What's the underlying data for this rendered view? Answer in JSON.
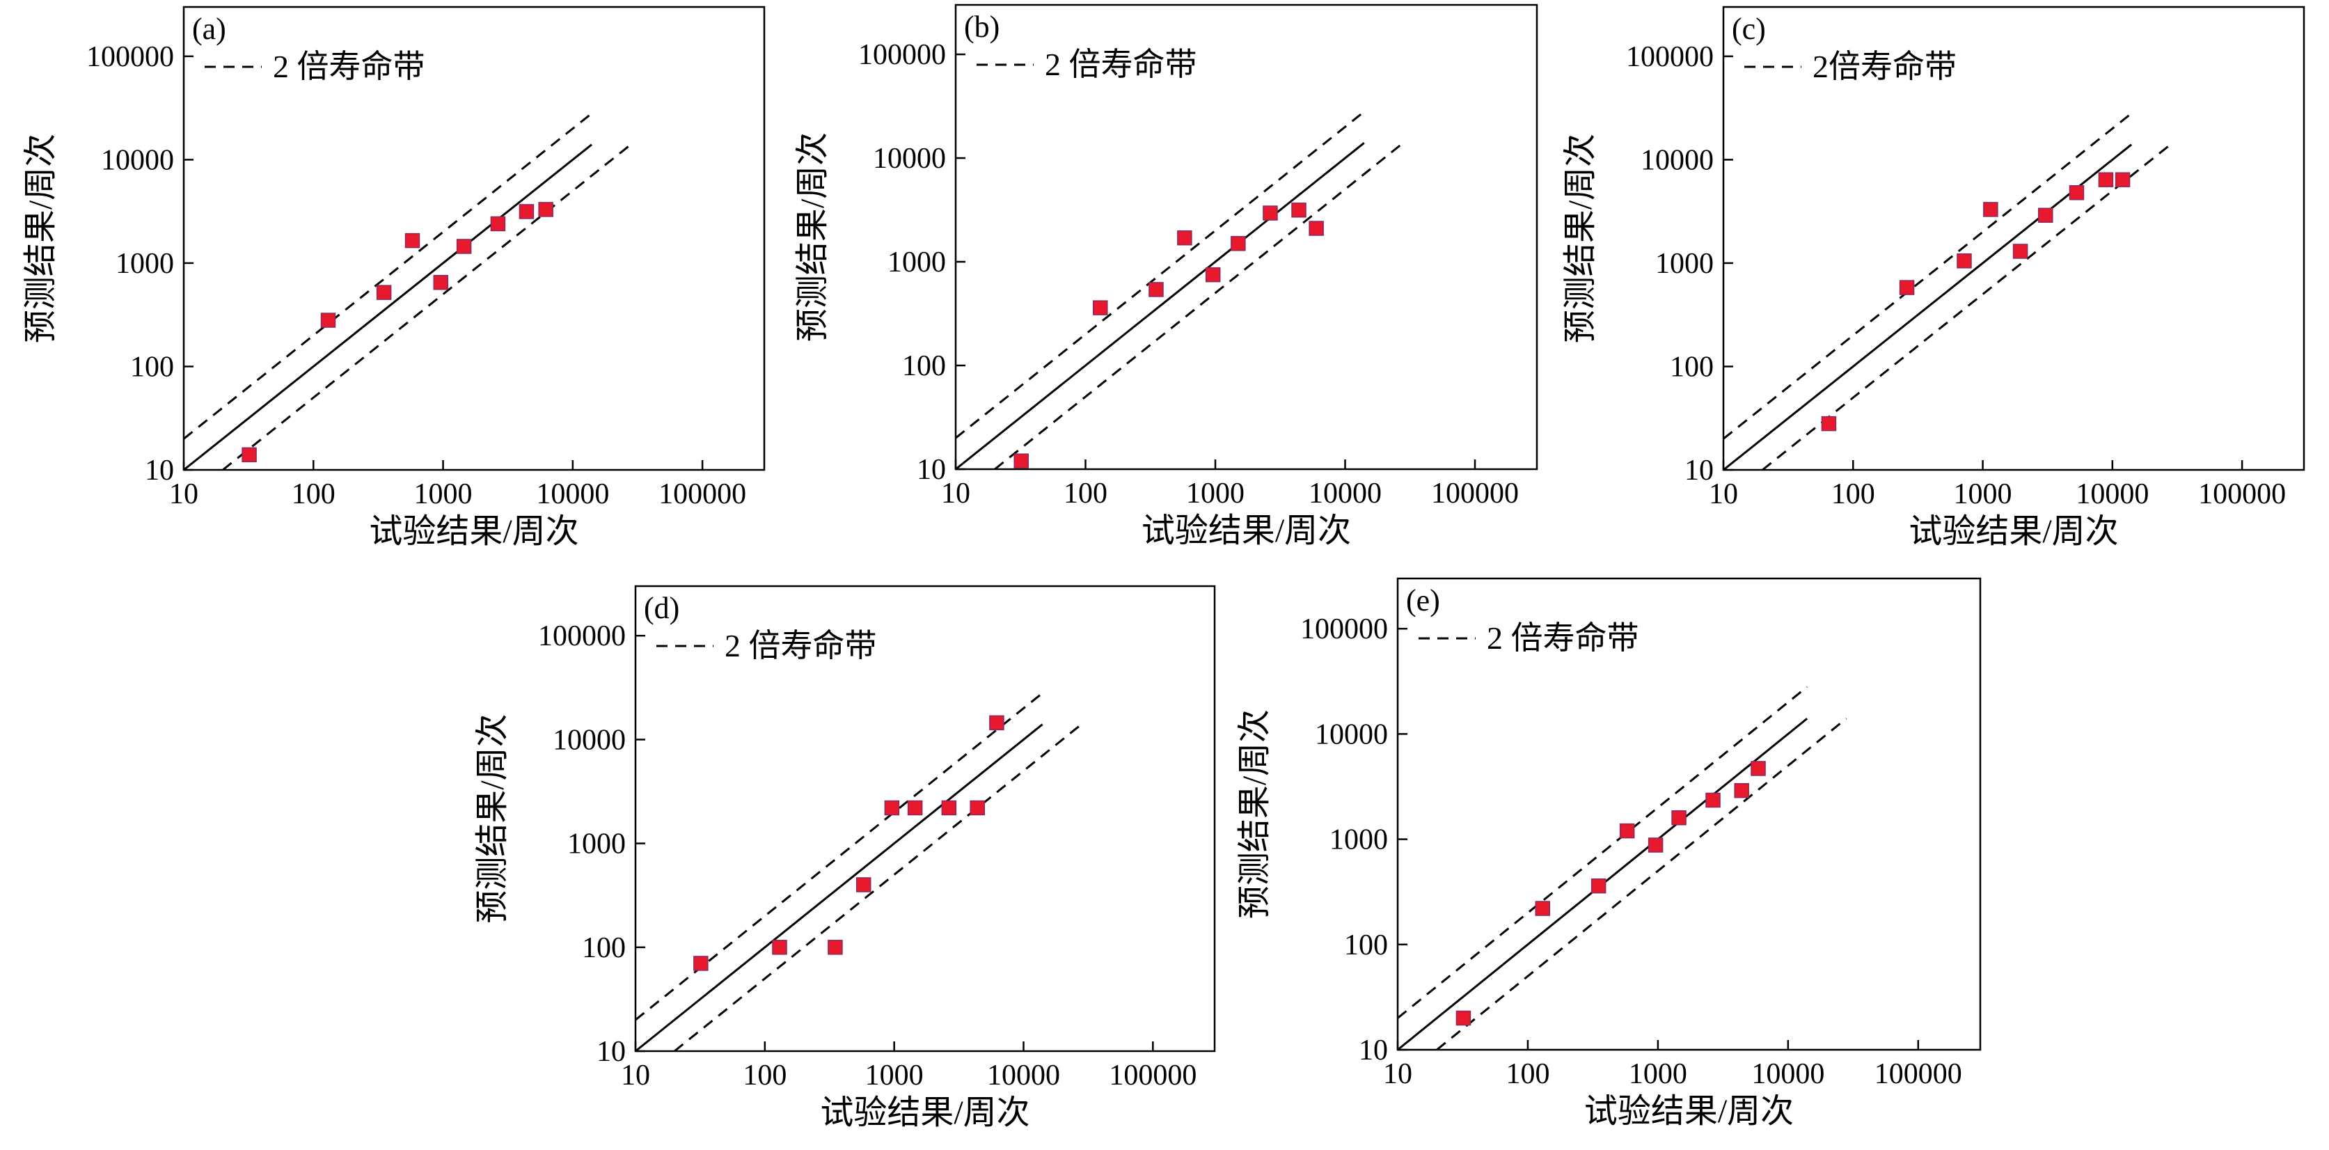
{
  "chart_data": [
    {
      "type": "scatter",
      "panel_label": "(a)",
      "xlabel": "试验结果/周次",
      "ylabel": "预测结果/周次",
      "xscale": "log",
      "yscale": "log",
      "xlim": [
        10,
        300000
      ],
      "ylim": [
        10,
        300000
      ],
      "xticks": [
        "10",
        "100",
        "1000",
        "10000",
        "100000"
      ],
      "yticks": [
        "10",
        "100",
        "1000",
        "10000",
        "100000"
      ],
      "legend": {
        "label": "2 倍寿命带",
        "position": "top-left"
      },
      "lines": {
        "center_ratio": 1,
        "band_ratio": 2,
        "x_end": 14000
      },
      "marker_color": "#e8192c",
      "points": [
        {
          "x": 32,
          "y": 14
        },
        {
          "x": 130,
          "y": 280
        },
        {
          "x": 350,
          "y": 520
        },
        {
          "x": 580,
          "y": 1650
        },
        {
          "x": 960,
          "y": 650
        },
        {
          "x": 1450,
          "y": 1450
        },
        {
          "x": 2650,
          "y": 2400
        },
        {
          "x": 4400,
          "y": 3150
        },
        {
          "x": 6200,
          "y": 3300
        }
      ]
    },
    {
      "type": "scatter",
      "panel_label": "(b)",
      "xlabel": "试验结果/周次",
      "ylabel": "预测结果/周次",
      "xscale": "log",
      "yscale": "log",
      "xlim": [
        10,
        300000
      ],
      "ylim": [
        10,
        300000
      ],
      "xticks": [
        "10",
        "100",
        "1000",
        "10000",
        "100000"
      ],
      "yticks": [
        "10",
        "100",
        "1000",
        "10000",
        "100000"
      ],
      "legend": {
        "label": "2 倍寿命带",
        "position": "top-left"
      },
      "lines": {
        "center_ratio": 1,
        "band_ratio": 2,
        "x_end": 14000
      },
      "marker_color": "#e8192c",
      "points": [
        {
          "x": 32,
          "y": 12
        },
        {
          "x": 130,
          "y": 360
        },
        {
          "x": 350,
          "y": 540
        },
        {
          "x": 580,
          "y": 1700
        },
        {
          "x": 960,
          "y": 750
        },
        {
          "x": 1500,
          "y": 1500
        },
        {
          "x": 2650,
          "y": 2950
        },
        {
          "x": 4400,
          "y": 3150
        },
        {
          "x": 6000,
          "y": 2100
        }
      ]
    },
    {
      "type": "scatter",
      "panel_label": "(c)",
      "xlabel": "试验结果/周次",
      "ylabel": "预测结果/周次",
      "xscale": "log",
      "yscale": "log",
      "xlim": [
        10,
        300000
      ],
      "ylim": [
        10,
        300000
      ],
      "xticks": [
        "10",
        "100",
        "1000",
        "10000",
        "100000"
      ],
      "yticks": [
        "10",
        "100",
        "1000",
        "10000",
        "100000"
      ],
      "legend": {
        "label": "2倍寿命带",
        "position": "top-left"
      },
      "lines": {
        "center_ratio": 1,
        "band_ratio": 2,
        "x_end": 14000
      },
      "marker_color": "#e8192c",
      "points": [
        {
          "x": 65,
          "y": 28
        },
        {
          "x": 260,
          "y": 580
        },
        {
          "x": 720,
          "y": 1050
        },
        {
          "x": 1150,
          "y": 3300
        },
        {
          "x": 1950,
          "y": 1300
        },
        {
          "x": 3050,
          "y": 2900
        },
        {
          "x": 5300,
          "y": 4800
        },
        {
          "x": 8900,
          "y": 6400
        },
        {
          "x": 12000,
          "y": 6400
        }
      ]
    },
    {
      "type": "scatter",
      "panel_label": "(d)",
      "xlabel": "试验结果/周次",
      "ylabel": "预测结果/周次",
      "xscale": "log",
      "yscale": "log",
      "xlim": [
        10,
        300000
      ],
      "ylim": [
        10,
        300000
      ],
      "xticks": [
        "10",
        "100",
        "1000",
        "10000",
        "100000"
      ],
      "yticks": [
        "10",
        "100",
        "1000",
        "10000",
        "100000"
      ],
      "legend": {
        "label": "2 倍寿命带",
        "position": "top-left"
      },
      "lines": {
        "center_ratio": 1,
        "band_ratio": 2,
        "x_end": 14000
      },
      "marker_color": "#e8192c",
      "points": [
        {
          "x": 32,
          "y": 70
        },
        {
          "x": 130,
          "y": 100
        },
        {
          "x": 350,
          "y": 100
        },
        {
          "x": 580,
          "y": 400
        },
        {
          "x": 960,
          "y": 2200
        },
        {
          "x": 1450,
          "y": 2200
        },
        {
          "x": 2650,
          "y": 2200
        },
        {
          "x": 4400,
          "y": 2200
        },
        {
          "x": 6200,
          "y": 14500
        }
      ]
    },
    {
      "type": "scatter",
      "panel_label": "(e)",
      "xlabel": "试验结果/周次",
      "ylabel": "预测结果/周次",
      "xscale": "log",
      "yscale": "log",
      "xlim": [
        10,
        300000
      ],
      "ylim": [
        10,
        300000
      ],
      "xticks": [
        "10",
        "100",
        "1000",
        "10000",
        "100000"
      ],
      "yticks": [
        "10",
        "100",
        "1000",
        "10000",
        "100000"
      ],
      "legend": {
        "label": "2 倍寿命带",
        "position": "top-left"
      },
      "lines": {
        "center_ratio": 1,
        "band_ratio": 2,
        "x_end": 14000
      },
      "marker_color": "#e8192c",
      "points": [
        {
          "x": 32,
          "y": 20
        },
        {
          "x": 130,
          "y": 220
        },
        {
          "x": 350,
          "y": 360
        },
        {
          "x": 580,
          "y": 1200
        },
        {
          "x": 960,
          "y": 880
        },
        {
          "x": 1450,
          "y": 1600
        },
        {
          "x": 2650,
          "y": 2350
        },
        {
          "x": 4400,
          "y": 2900
        },
        {
          "x": 5900,
          "y": 4700
        }
      ]
    }
  ]
}
